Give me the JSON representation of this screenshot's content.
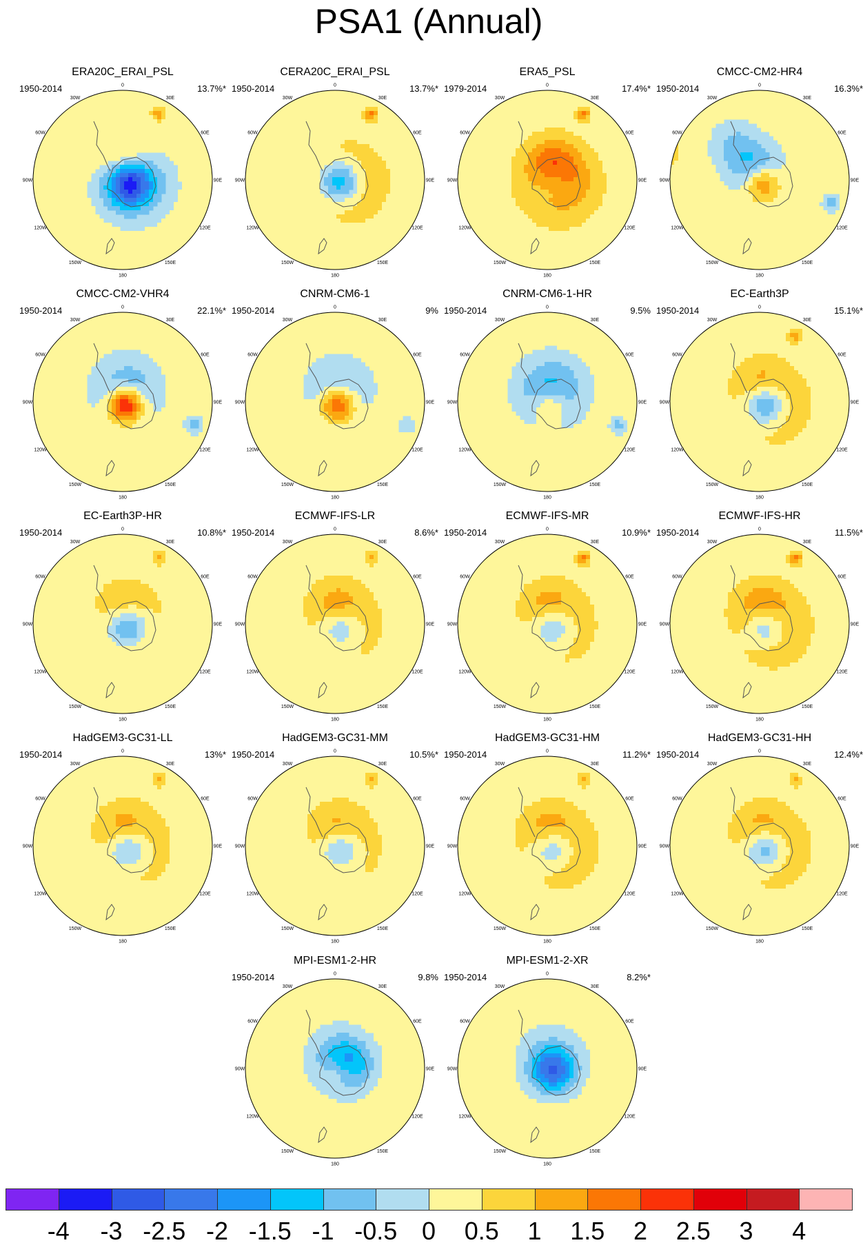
{
  "title": "PSA1 (Annual)",
  "panels": [
    {
      "title": "ERA20C_ERAI_PSL",
      "period": "1950-2014",
      "variance": "13.7%*",
      "blobs": [
        [
          0.2,
          0.03,
          2,
          -2.8
        ],
        [
          0.2,
          0.06,
          3.2,
          -1.5
        ],
        [
          0.48,
          0.08,
          2.3,
          1.4
        ],
        [
          0.42,
          0.38,
          0.6,
          1.2
        ],
        [
          0.62,
          0.62,
          2.1,
          -1.1
        ]
      ]
    },
    {
      "title": "CERA20C_ERAI_PSL",
      "period": "1950-2014",
      "variance": "13.7%*",
      "blobs": [
        [
          0.2,
          0.03,
          2,
          -2.7
        ],
        [
          0.22,
          0.06,
          3.2,
          1.3
        ],
        [
          0.42,
          0.38,
          0.6,
          1.3
        ],
        [
          0.62,
          0.62,
          2.1,
          -0.9
        ]
      ]
    },
    {
      "title": "ERA5_PSL",
      "period": "1979-2014",
      "variance": "17.4%*",
      "blobs": [
        [
          0.18,
          0.03,
          1.9,
          -1.3
        ],
        [
          0.2,
          0.06,
          3.2,
          1.6
        ],
        [
          0.45,
          0.08,
          2.3,
          1.2
        ],
        [
          0.42,
          0.38,
          0.6,
          1.4
        ]
      ]
    },
    {
      "title": "CMCC-CM2-HR4",
      "period": "1950-2014",
      "variance": "16.3%*",
      "blobs": [
        [
          0.12,
          0.02,
          1.6,
          1.8
        ],
        [
          0.55,
          0.06,
          2.4,
          -1.3
        ],
        [
          0.2,
          0.38,
          0.8,
          -1.0
        ],
        [
          0.7,
          0.55,
          2.2,
          0.7
        ],
        [
          0.6,
          0.22,
          2.2,
          -0.8
        ]
      ]
    },
    {
      "title": "CMCC-CM2-VHR4",
      "period": "1950-2014",
      "variance": "22.1%*",
      "blobs": [
        [
          0.12,
          0.02,
          1.6,
          3.2
        ],
        [
          0.45,
          0.06,
          3.0,
          -1.3
        ],
        [
          0.2,
          0.38,
          0.8,
          -1.0
        ],
        [
          0.65,
          0.6,
          2.2,
          1.0
        ]
      ]
    },
    {
      "title": "CNRM-CM6-1",
      "period": "1950-2014",
      "variance": "9%",
      "blobs": [
        [
          0.12,
          0.02,
          1.6,
          2.4
        ],
        [
          0.45,
          0.06,
          3.0,
          -1.0
        ],
        [
          0.2,
          0.38,
          0.8,
          -0.7
        ],
        [
          0.65,
          0.6,
          2.2,
          0.9
        ]
      ]
    },
    {
      "title": "CNRM-CM6-1-HR",
      "period": "1950-2014",
      "variance": "9.5%",
      "blobs": [
        [
          0.12,
          0.02,
          1.6,
          1.3
        ],
        [
          0.45,
          0.06,
          3.0,
          -1.6
        ],
        [
          0.2,
          0.38,
          0.8,
          -0.9
        ],
        [
          0.65,
          0.6,
          2.2,
          0.4
        ]
      ]
    },
    {
      "title": "EC-Earth3P",
      "period": "1950-2014",
      "variance": "15.1%*",
      "blobs": [
        [
          0.2,
          0.03,
          2,
          -2.6
        ],
        [
          0.2,
          0.06,
          3.2,
          1.1
        ],
        [
          0.48,
          0.08,
          2.3,
          0.9
        ],
        [
          0.42,
          0.38,
          0.6,
          1.2
        ],
        [
          0.62,
          0.62,
          2.1,
          -0.8
        ]
      ]
    },
    {
      "title": "EC-Earth3P-HR",
      "period": "1950-2014",
      "variance": "10.8%*",
      "blobs": [
        [
          0.2,
          0.03,
          2,
          -2.2
        ],
        [
          0.2,
          0.06,
          3.2,
          0.7
        ],
        [
          0.48,
          0.08,
          2.3,
          0.8
        ],
        [
          0.42,
          0.38,
          0.6,
          0.9
        ],
        [
          0.62,
          0.62,
          2.1,
          -0.8
        ]
      ]
    },
    {
      "title": "ECMWF-IFS-LR",
      "period": "1950-2014",
      "variance": "8.6%*",
      "blobs": [
        [
          0.2,
          0.03,
          2,
          -1.8
        ],
        [
          0.2,
          0.06,
          3.2,
          0.8
        ],
        [
          0.48,
          0.08,
          2.3,
          1.1
        ],
        [
          0.42,
          0.38,
          0.6,
          0.9
        ],
        [
          0.62,
          0.62,
          2.1,
          -0.6
        ]
      ]
    },
    {
      "title": "ECMWF-IFS-MR",
      "period": "1950-2014",
      "variance": "10.9%*",
      "blobs": [
        [
          0.2,
          0.03,
          2,
          -2.0
        ],
        [
          0.2,
          0.06,
          3.2,
          0.9
        ],
        [
          0.48,
          0.08,
          2.3,
          1.0
        ],
        [
          0.42,
          0.38,
          0.6,
          1.3
        ],
        [
          0.62,
          0.62,
          2.1,
          -0.7
        ]
      ]
    },
    {
      "title": "ECMWF-IFS-HR",
      "period": "1950-2014",
      "variance": "11.5%*",
      "blobs": [
        [
          0.2,
          0.03,
          2,
          -2.1
        ],
        [
          0.2,
          0.06,
          3.2,
          1.2
        ],
        [
          0.48,
          0.08,
          2.3,
          1.1
        ],
        [
          0.42,
          0.38,
          0.6,
          1.4
        ],
        [
          0.62,
          0.62,
          2.1,
          -0.9
        ]
      ]
    },
    {
      "title": "HadGEM3-GC31-LL",
      "period": "1950-2014",
      "variance": "13%*",
      "blobs": [
        [
          0.2,
          0.03,
          2,
          -2.1
        ],
        [
          0.2,
          0.06,
          3.2,
          0.9
        ],
        [
          0.48,
          0.08,
          2.3,
          1.0
        ],
        [
          0.42,
          0.38,
          0.6,
          0.9
        ],
        [
          0.62,
          0.62,
          2.1,
          -1.0
        ]
      ]
    },
    {
      "title": "HadGEM3-GC31-MM",
      "period": "1950-2014",
      "variance": "10.5%*",
      "blobs": [
        [
          0.2,
          0.03,
          2,
          -1.9
        ],
        [
          0.2,
          0.06,
          3.2,
          0.8
        ],
        [
          0.48,
          0.08,
          2.3,
          0.9
        ],
        [
          0.42,
          0.38,
          0.6,
          0.9
        ],
        [
          0.62,
          0.62,
          2.1,
          -0.9
        ]
      ]
    },
    {
      "title": "HadGEM3-GC31-HM",
      "period": "1950-2014",
      "variance": "11.2%*",
      "blobs": [
        [
          0.2,
          0.03,
          2,
          -2.0
        ],
        [
          0.2,
          0.06,
          3.2,
          1.1
        ],
        [
          0.48,
          0.08,
          2.3,
          0.9
        ],
        [
          0.42,
          0.38,
          0.6,
          0.9
        ],
        [
          0.62,
          0.62,
          2.1,
          -0.6
        ]
      ]
    },
    {
      "title": "HadGEM3-GC31-HH",
      "period": "1950-2014",
      "variance": "12.4%*",
      "blobs": [
        [
          0.2,
          0.03,
          2,
          -2.4
        ],
        [
          0.2,
          0.06,
          3.2,
          1.1
        ],
        [
          0.48,
          0.08,
          2.3,
          0.9
        ],
        [
          0.42,
          0.38,
          0.6,
          0.8
        ],
        [
          0.62,
          0.62,
          2.1,
          -1.1
        ]
      ]
    },
    {
      "title": "MPI-ESM1-2-HR",
      "period": "1950-2014",
      "variance": "9.8%",
      "blobs": [
        [
          0.12,
          0.02,
          1.6,
          1.4
        ],
        [
          0.3,
          0.05,
          2.3,
          -2.0
        ],
        [
          0.45,
          0.06,
          3.0,
          -0.6
        ],
        [
          0.62,
          0.62,
          2.1,
          -0.6
        ]
      ]
    },
    {
      "title": "MPI-ESM1-2-XR",
      "period": "1950-2014",
      "variance": "8.2%*",
      "blobs": [
        [
          0.2,
          0.03,
          2,
          -2.3
        ],
        [
          0.45,
          0.06,
          3.0,
          -0.7
        ],
        [
          0.62,
          0.62,
          2.1,
          -0.7
        ]
      ]
    }
  ],
  "lon_labels": [
    "0",
    "30E",
    "60E",
    "90E",
    "120E",
    "150E",
    "180",
    "150W",
    "120W",
    "90W",
    "60W",
    "30W"
  ],
  "colorbar": {
    "labels": [
      "-4",
      "-3",
      "-2.5",
      "-2",
      "-1.5",
      "-1",
      "-0.5",
      "0",
      "0.5",
      "1",
      "1.5",
      "2",
      "2.5",
      "3",
      "4"
    ],
    "colors": [
      "#7f25f2",
      "#1b1bf5",
      "#2f5ae6",
      "#3878ea",
      "#1c95f7",
      "#03c5fa",
      "#71c1f0",
      "#b1ddf0",
      "#fef69a",
      "#fcd53b",
      "#fba811",
      "#fb7705",
      "#fb3208",
      "#e10009",
      "#c51b20",
      "#fdb4b4"
    ]
  }
}
